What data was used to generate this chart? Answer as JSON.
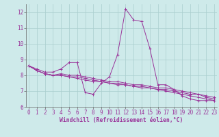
{
  "background_color": "#ceeaea",
  "grid_color": "#aacece",
  "line_color": "#993399",
  "spine_color": "#666666",
  "x_min": 0,
  "x_max": 23,
  "y_min": 6,
  "y_max": 12.5,
  "yticks": [
    6,
    7,
    8,
    9,
    10,
    11,
    12
  ],
  "xlabel": "Windchill (Refroidissement éolien,°C)",
  "xlabel_fontsize": 5.8,
  "tick_fontsize": 5.5,
  "series": [
    [
      8.6,
      8.4,
      8.2,
      8.2,
      8.4,
      8.8,
      8.8,
      6.9,
      6.8,
      7.5,
      7.9,
      9.3,
      12.2,
      11.5,
      11.4,
      9.7,
      7.4,
      7.4,
      7.1,
      6.7,
      6.5,
      6.4,
      6.4,
      6.4
    ],
    [
      8.6,
      8.3,
      8.1,
      8.0,
      8.1,
      8.0,
      8.0,
      7.9,
      7.8,
      7.7,
      7.6,
      7.6,
      7.5,
      7.4,
      7.4,
      7.3,
      7.2,
      7.2,
      7.1,
      7.0,
      6.9,
      6.8,
      6.7,
      6.6
    ],
    [
      8.6,
      8.3,
      8.1,
      8.0,
      8.0,
      7.9,
      7.9,
      7.8,
      7.7,
      7.6,
      7.5,
      7.5,
      7.4,
      7.3,
      7.3,
      7.2,
      7.1,
      7.1,
      7.0,
      6.9,
      6.8,
      6.8,
      6.6,
      6.5
    ],
    [
      8.6,
      8.3,
      8.1,
      8.0,
      8.0,
      7.9,
      7.8,
      7.7,
      7.6,
      7.6,
      7.5,
      7.4,
      7.4,
      7.3,
      7.2,
      7.2,
      7.1,
      7.0,
      6.9,
      6.8,
      6.7,
      6.6,
      6.5,
      6.4
    ]
  ]
}
